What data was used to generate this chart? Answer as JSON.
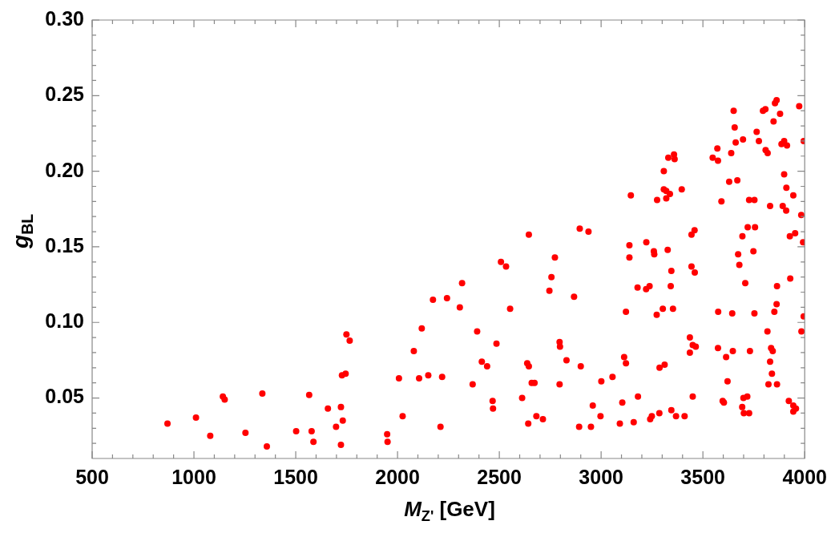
{
  "chart_data": {
    "type": "scatter",
    "xlabel": "M$_{Z'}$ [GeV]",
    "ylabel": "g$_{BL}$",
    "marker": "circle",
    "grid": false,
    "xlim": [
      500,
      4000
    ],
    "ylim": [
      0.01,
      0.3
    ],
    "xticks": [
      500,
      {
        "value": 600,
        "label": null
      },
      {
        "value": 700,
        "label": null
      },
      {
        "value": 800,
        "label": null
      },
      {
        "value": 900,
        "label": null
      },
      1000,
      {
        "value": 1100,
        "label": null
      },
      {
        "value": 1200,
        "label": null
      },
      {
        "value": 1300,
        "label": null
      },
      {
        "value": 1400,
        "label": null
      },
      1500,
      {
        "value": 1600,
        "label": null
      },
      {
        "value": 1700,
        "label": null
      },
      {
        "value": 1800,
        "label": null
      },
      {
        "value": 1900,
        "label": null
      },
      2000,
      {
        "value": 2100,
        "label": null
      },
      {
        "value": 2200,
        "label": null
      },
      {
        "value": 2300,
        "label": null
      },
      {
        "value": 2400,
        "label": null
      },
      2500,
      {
        "value": 2600,
        "label": null
      },
      {
        "value": 2700,
        "label": null
      },
      {
        "value": 2800,
        "label": null
      },
      {
        "value": 2900,
        "label": null
      },
      3000,
      {
        "value": 3100,
        "label": null
      },
      {
        "value": 3200,
        "label": null
      },
      {
        "value": 3300,
        "label": null
      },
      {
        "value": 3400,
        "label": null
      },
      3500,
      {
        "value": 3600,
        "label": null
      },
      {
        "value": 3700,
        "label": null
      },
      {
        "value": 3800,
        "label": null
      },
      {
        "value": 3900,
        "label": null
      },
      4000
    ],
    "yticks": [
      {
        "value": 0.02,
        "label": null
      },
      {
        "value": 0.03,
        "label": null
      },
      {
        "value": 0.04,
        "label": null
      },
      {
        "value": 0.05,
        "label": "0.05"
      },
      {
        "value": 0.06,
        "label": null
      },
      {
        "value": 0.07,
        "label": null
      },
      {
        "value": 0.08,
        "label": null
      },
      {
        "value": 0.09,
        "label": null
      },
      {
        "value": 0.1,
        "label": "0.10"
      },
      {
        "value": 0.11,
        "label": null
      },
      {
        "value": 0.12,
        "label": null
      },
      {
        "value": 0.13,
        "label": null
      },
      {
        "value": 0.14,
        "label": null
      },
      {
        "value": 0.15,
        "label": "0.15"
      },
      {
        "value": 0.16,
        "label": null
      },
      {
        "value": 0.17,
        "label": null
      },
      {
        "value": 0.18,
        "label": null
      },
      {
        "value": 0.19,
        "label": null
      },
      {
        "value": 0.2,
        "label": "0.20"
      },
      {
        "value": 0.21,
        "label": null
      },
      {
        "value": 0.22,
        "label": null
      },
      {
        "value": 0.23,
        "label": null
      },
      {
        "value": 0.24,
        "label": null
      },
      {
        "value": 0.25,
        "label": "0.25"
      },
      {
        "value": 0.26,
        "label": null
      },
      {
        "value": 0.27,
        "label": null
      },
      {
        "value": 0.28,
        "label": null
      },
      {
        "value": 0.29,
        "label": null
      },
      {
        "value": 0.3,
        "label": "0.30"
      }
    ],
    "series": [
      {
        "color": "#ff0000",
        "x": [
          870,
          1010,
          1080,
          1142,
          1151,
          1253,
          1336,
          1358,
          1502,
          1566,
          1578,
          1587,
          1658,
          1698,
          1722,
          1722,
          1727,
          1745,
          1731,
          1749,
          1765,
          1949,
          1951,
          2007,
          2025,
          2080,
          2106,
          2119,
          2151,
          2174,
          2211,
          2219,
          2243,
          2306,
          2317,
          2369,
          2391,
          2414,
          2440,
          2467,
          2469,
          2486,
          2508,
          2533,
          2553,
          2612,
          2637,
          2645,
          2642,
          2645,
          2659,
          2673,
          2682,
          2714,
          2746,
          2756,
          2773,
          2796,
          2798,
          2796,
          2830,
          2867,
          2895,
          2938,
          2900,
          2892,
          2950,
          2959,
          2997,
          3001,
          3056,
          3092,
          3104,
          3113,
          3122,
          3122,
          3139,
          3139,
          3146,
          3160,
          3179,
          3181,
          3221,
          3238,
          3222,
          3241,
          3249,
          3259,
          3261,
          3273,
          3275,
          3286,
          3287,
          3303,
          3308,
          3308,
          3312,
          3320,
          3320,
          3338,
          3327,
          3330,
          3342,
          3345,
          3345,
          3353,
          3358,
          3361,
          3368,
          3396,
          3410,
          3444,
          3459,
          3444,
          3460,
          3436,
          3450,
          3465,
          3436,
          3450,
          3548,
          3571,
          3574,
          3575,
          3574,
          3591,
          3597,
          3603,
          3614,
          3621,
          3629,
          3639,
          3644,
          3647,
          3651,
          3656,
          3661,
          3669,
          3673,
          3679,
          3694,
          3697,
          3693,
          3699,
          3701,
          3718,
          3727,
          3708,
          3720,
          3727,
          3753,
          3731,
          3748,
          3756,
          3753,
          3764,
          3775,
          3795,
          3807,
          3808,
          3818,
          3817,
          3830,
          3835,
          3843,
          3830,
          3839,
          3822,
          3864,
          3847,
          3854,
          3862,
          3851,
          3862,
          3864,
          3879,
          3886,
          3899,
          3913,
          3892,
          3899,
          3909,
          3910,
          3922,
          3927,
          3929,
          3944,
          3944,
          3957,
          3944,
          3953,
          3973,
          3983,
          3984,
          3992,
          3995,
          3995
        ],
        "values": [
          0.033,
          0.037,
          0.025,
          0.051,
          0.049,
          0.027,
          0.053,
          0.018,
          0.028,
          0.052,
          0.028,
          0.021,
          0.043,
          0.031,
          0.044,
          0.019,
          0.065,
          0.066,
          0.035,
          0.092,
          0.088,
          0.026,
          0.021,
          0.063,
          0.038,
          0.081,
          0.063,
          0.096,
          0.065,
          0.115,
          0.031,
          0.064,
          0.116,
          0.11,
          0.126,
          0.059,
          0.094,
          0.074,
          0.071,
          0.048,
          0.043,
          0.086,
          0.14,
          0.137,
          0.109,
          0.05,
          0.073,
          0.071,
          0.033,
          0.158,
          0.06,
          0.06,
          0.038,
          0.036,
          0.121,
          0.13,
          0.143,
          0.087,
          0.084,
          0.059,
          0.075,
          0.117,
          0.162,
          0.16,
          0.071,
          0.031,
          0.031,
          0.045,
          0.038,
          0.061,
          0.064,
          0.033,
          0.047,
          0.077,
          0.073,
          0.107,
          0.151,
          0.143,
          0.184,
          0.034,
          0.123,
          0.051,
          0.122,
          0.124,
          0.153,
          0.036,
          0.038,
          0.147,
          0.145,
          0.105,
          0.181,
          0.04,
          0.07,
          0.109,
          0.2,
          0.188,
          0.072,
          0.182,
          0.187,
          0.185,
          0.148,
          0.209,
          0.124,
          0.042,
          0.134,
          0.109,
          0.211,
          0.208,
          0.038,
          0.188,
          0.038,
          0.158,
          0.161,
          0.137,
          0.133,
          0.09,
          0.085,
          0.084,
          0.08,
          0.051,
          0.209,
          0.215,
          0.207,
          0.107,
          0.083,
          0.18,
          0.048,
          0.047,
          0.077,
          0.061,
          0.193,
          0.212,
          0.106,
          0.081,
          0.24,
          0.229,
          0.219,
          0.194,
          0.145,
          0.138,
          0.157,
          0.221,
          0.044,
          0.05,
          0.04,
          0.051,
          0.04,
          0.126,
          0.163,
          0.181,
          0.181,
          0.081,
          0.147,
          0.163,
          0.106,
          0.226,
          0.22,
          0.24,
          0.241,
          0.214,
          0.212,
          0.094,
          0.177,
          0.083,
          0.081,
          0.074,
          0.066,
          0.059,
          0.059,
          0.233,
          0.245,
          0.247,
          0.107,
          0.112,
          0.124,
          0.238,
          0.218,
          0.22,
          0.217,
          0.177,
          0.198,
          0.174,
          0.189,
          0.048,
          0.157,
          0.129,
          0.184,
          0.045,
          0.043,
          0.041,
          0.159,
          0.243,
          0.171,
          0.094,
          0.153,
          0.104,
          0.22
        ]
      }
    ]
  }
}
